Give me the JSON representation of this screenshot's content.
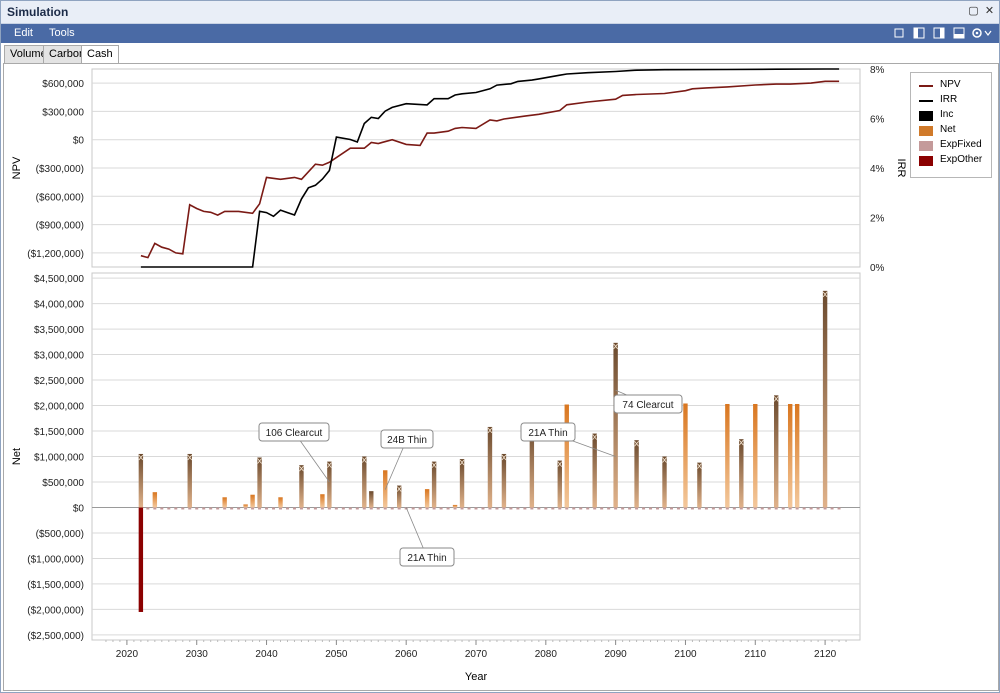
{
  "window": {
    "title": "Simulation"
  },
  "menu": {
    "edit": "Edit",
    "tools": "Tools"
  },
  "toolbar_icons": [
    "panel-single-icon",
    "panel-left-icon",
    "panel-right-icon",
    "panel-bottom-icon",
    "settings-icon"
  ],
  "tabs": [
    {
      "label": "Volume",
      "active": false
    },
    {
      "label": "Carbon",
      "active": false
    },
    {
      "label": "Cash Flow",
      "active": true
    }
  ],
  "legend": [
    {
      "label": "NPV",
      "color": "#7b1a15",
      "kind": "line"
    },
    {
      "label": "IRR",
      "color": "#000000",
      "kind": "line"
    },
    {
      "label": "Inc",
      "color": "#000000",
      "kind": "box"
    },
    {
      "label": "Net",
      "color": "#d07a2a",
      "kind": "box"
    },
    {
      "label": "ExpFixed",
      "color": "#c49a9a",
      "kind": "box"
    },
    {
      "label": "ExpOther",
      "color": "#8b0000",
      "kind": "box"
    }
  ],
  "chart_data": [
    {
      "type": "line",
      "ylabel": "NPV",
      "y2label": "IRR",
      "ylim": [
        -1350000,
        750000
      ],
      "y2lim": [
        0,
        8
      ],
      "yticks": [
        "$600,000",
        "$300,000",
        "$0",
        "($300,000)",
        "($600,000)",
        "($900,000)",
        "($1,200,000)"
      ],
      "ytick_values": [
        600000,
        300000,
        0,
        -300000,
        -600000,
        -900000,
        -1200000
      ],
      "y2ticks": [
        "8%",
        "6%",
        "4%",
        "2%",
        "0%"
      ],
      "y2tick_values": [
        8,
        6,
        4,
        2,
        0
      ],
      "series": [
        {
          "name": "NPV",
          "color": "#7b1a15",
          "axis": "left",
          "x": [
            2022,
            2023,
            2024,
            2025,
            2026,
            2027,
            2028,
            2029,
            2030,
            2031,
            2032,
            2033,
            2034,
            2036,
            2038,
            2039,
            2040,
            2042,
            2044,
            2045,
            2047,
            2048,
            2049,
            2052,
            2054,
            2055,
            2056,
            2058,
            2060,
            2062,
            2063,
            2064,
            2066,
            2067,
            2068,
            2070,
            2072,
            2073,
            2074,
            2077,
            2078,
            2079,
            2082,
            2083,
            2086,
            2090,
            2091,
            2093,
            2097,
            2100,
            2101,
            2103,
            2106,
            2110,
            2113,
            2115,
            2118,
            2120,
            2122
          ],
          "y": [
            -1230000,
            -1250000,
            -1100000,
            -1140000,
            -1160000,
            -1200000,
            -1210000,
            -690000,
            -730000,
            -760000,
            -770000,
            -800000,
            -760000,
            -760000,
            -780000,
            -680000,
            -400000,
            -420000,
            -400000,
            -420000,
            -260000,
            -270000,
            -240000,
            -90000,
            -90000,
            -30000,
            -40000,
            0,
            -50000,
            -60000,
            70000,
            70000,
            90000,
            120000,
            130000,
            120000,
            210000,
            200000,
            220000,
            250000,
            260000,
            270000,
            310000,
            370000,
            400000,
            430000,
            470000,
            480000,
            490000,
            520000,
            540000,
            550000,
            560000,
            580000,
            590000,
            590000,
            600000,
            620000,
            620000
          ]
        },
        {
          "name": "IRR",
          "color": "#000000",
          "axis": "right",
          "x": [
            2022,
            2038,
            2039,
            2040,
            2041,
            2042,
            2043,
            2044,
            2045,
            2046,
            2047,
            2048,
            2049,
            2050,
            2052,
            2053,
            2054,
            2055,
            2056,
            2057,
            2058,
            2060,
            2063,
            2064,
            2066,
            2067,
            2068,
            2070,
            2072,
            2073,
            2075,
            2076,
            2078,
            2079,
            2080,
            2082,
            2083,
            2086,
            2090,
            2093,
            2097,
            2106,
            2113,
            2120,
            2122
          ],
          "y": [
            0,
            0,
            2.25,
            2.2,
            2.05,
            2.3,
            2.2,
            2.1,
            2.75,
            3.2,
            3.3,
            3.55,
            3.9,
            5.25,
            5.15,
            5.05,
            5.8,
            6.05,
            6.0,
            6.3,
            6.45,
            6.6,
            6.55,
            6.8,
            6.8,
            6.95,
            7.0,
            7.05,
            7.2,
            7.35,
            7.4,
            7.5,
            7.55,
            7.6,
            7.65,
            7.75,
            7.8,
            7.85,
            7.9,
            7.95,
            7.97,
            7.98,
            7.99,
            8.0,
            8.0
          ]
        }
      ]
    },
    {
      "type": "bar",
      "xlabel": "Year",
      "ylabel": "Net",
      "ylim": [
        -2600000,
        4600000
      ],
      "xlim": [
        2015,
        2125
      ],
      "xticks": [
        2020,
        2030,
        2040,
        2050,
        2060,
        2070,
        2080,
        2090,
        2100,
        2110,
        2120
      ],
      "yticks": [
        "$4,500,000",
        "$4,000,000",
        "$3,500,000",
        "$3,000,000",
        "$2,500,000",
        "$2,000,000",
        "$1,500,000",
        "$1,000,000",
        "$500,000",
        "$0",
        "($500,000)",
        "($1,000,000)",
        "($1,500,000)",
        "($2,000,000)",
        "($2,500,000)"
      ],
      "ytick_values": [
        4500000,
        4000000,
        3500000,
        3000000,
        2500000,
        2000000,
        1500000,
        1000000,
        500000,
        0,
        -500000,
        -1000000,
        -1500000,
        -2000000,
        -2500000
      ],
      "bars": [
        {
          "year": 2022,
          "net": 1050000,
          "dark": true
        },
        {
          "year": 2024,
          "net": 300000,
          "dark": false
        },
        {
          "year": 2029,
          "net": 1050000,
          "dark": true
        },
        {
          "year": 2034,
          "net": 200000,
          "dark": false
        },
        {
          "year": 2037,
          "net": 60000,
          "dark": false
        },
        {
          "year": 2038,
          "net": 250000,
          "dark": false
        },
        {
          "year": 2039,
          "net": 980000,
          "dark": true
        },
        {
          "year": 2042,
          "net": 200000,
          "dark": false
        },
        {
          "year": 2045,
          "net": 830000,
          "dark": true
        },
        {
          "year": 2048,
          "net": 260000,
          "dark": false
        },
        {
          "year": 2049,
          "net": 900000,
          "dark": true
        },
        {
          "year": 2054,
          "net": 1000000,
          "dark": true
        },
        {
          "year": 2055,
          "net": 320000,
          "dark": true
        },
        {
          "year": 2057,
          "net": 730000,
          "dark": false
        },
        {
          "year": 2059,
          "net": 430000,
          "dark": true
        },
        {
          "year": 2063,
          "net": 360000,
          "dark": false
        },
        {
          "year": 2064,
          "net": 900000,
          "dark": true
        },
        {
          "year": 2067,
          "net": 50000,
          "dark": false
        },
        {
          "year": 2068,
          "net": 950000,
          "dark": true
        },
        {
          "year": 2072,
          "net": 1580000,
          "dark": true
        },
        {
          "year": 2074,
          "net": 1050000,
          "dark": true
        },
        {
          "year": 2078,
          "net": 1600000,
          "dark": true
        },
        {
          "year": 2082,
          "net": 920000,
          "dark": true
        },
        {
          "year": 2083,
          "net": 2020000,
          "dark": false
        },
        {
          "year": 2087,
          "net": 1450000,
          "dark": true
        },
        {
          "year": 2090,
          "net": 3230000,
          "dark": true
        },
        {
          "year": 2093,
          "net": 1320000,
          "dark": true
        },
        {
          "year": 2097,
          "net": 1000000,
          "dark": true
        },
        {
          "year": 2100,
          "net": 2040000,
          "dark": false
        },
        {
          "year": 2102,
          "net": 880000,
          "dark": true
        },
        {
          "year": 2106,
          "net": 2030000,
          "dark": false
        },
        {
          "year": 2108,
          "net": 1340000,
          "dark": true
        },
        {
          "year": 2110,
          "net": 2030000,
          "dark": false
        },
        {
          "year": 2113,
          "net": 2200000,
          "dark": true
        },
        {
          "year": 2115,
          "net": 2030000,
          "dark": false
        },
        {
          "year": 2116,
          "net": 2030000,
          "dark": false
        },
        {
          "year": 2120,
          "net": 4250000,
          "dark": true
        }
      ],
      "exp_other": [
        {
          "year": 2022,
          "value": -2050000
        }
      ],
      "annotations": [
        {
          "text": "106 Clearcut",
          "year": 2049,
          "value": 500000
        },
        {
          "text": "24B Thin",
          "year": 2057,
          "value": 350000
        },
        {
          "text": "21A Thin",
          "year": 2060,
          "value": 0
        },
        {
          "text": "21A Thin",
          "year": 2090,
          "value": 1000000
        },
        {
          "text": "74 Clearcut",
          "year": 2090,
          "value": 2300000
        }
      ]
    }
  ]
}
